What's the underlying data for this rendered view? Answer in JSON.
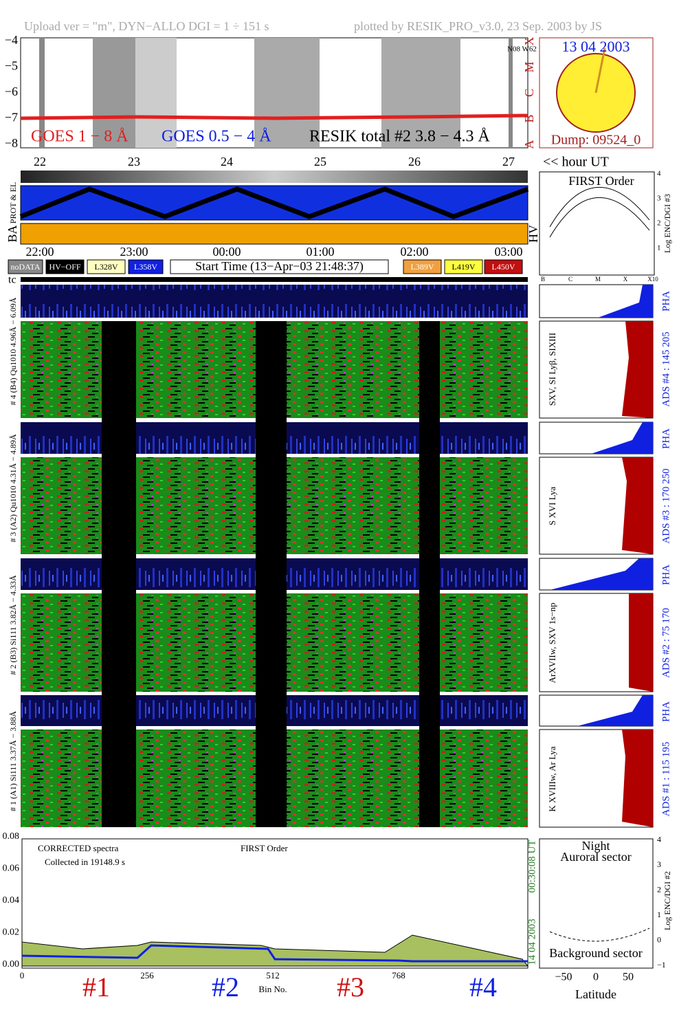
{
  "header": {
    "left": "Upload ver = \"m\", DYN−ALLO DGI =   1 ÷ 151 s",
    "right": "plotted by RESIK_PRO_v3.0, 23 Sep. 2003 by JS"
  },
  "goes": {
    "yticks": [
      "−4",
      "−5",
      "−6",
      "−7",
      "−8"
    ],
    "classes": [
      "A",
      "B",
      "C",
      "M",
      "X"
    ],
    "legend": [
      "GOES 1 − 8 Å",
      "GOES 0.5 − 4 Å",
      "RESIK total #2  3.8 − 4.3 Å"
    ],
    "position": "N08 W62"
  },
  "sun": {
    "date": "13 04 2003",
    "dump": "Dump: 09524_0"
  },
  "days": [
    "22",
    "23",
    "24",
    "25",
    "26",
    "27"
  ],
  "hour_label": "<< hour UT",
  "side_labels": {
    "prot": "PROT & EL",
    "ba": "BA",
    "hv": "HV",
    "tc": "tc"
  },
  "times": [
    "22:00",
    "23:00",
    "00:00",
    "01:00",
    "02:00",
    "03:00"
  ],
  "legend": {
    "nodata": "noDATA",
    "hvoff": "HV−OFF",
    "l328": "L328V",
    "l358": "L358V",
    "start": "Start Time (13−Apr−03 21:48:37)",
    "l389": "L389V",
    "l419": "L419V",
    "l450": "L450V"
  },
  "first_order": {
    "title": "FIRST Order",
    "yticks": [
      "1",
      "2",
      "3",
      "4"
    ],
    "ylabel": "Log ENC/DGI #3",
    "xticks": [
      "B",
      "C",
      "M",
      "X",
      "X10"
    ]
  },
  "channels": [
    {
      "left": "# 4 (B4) Qu1010 4.96Å − 6.09Å",
      "lines": "SXV, SI Lyβ, SIXIII",
      "ads": "ADS #4 :  145 205",
      "pha": "PHA"
    },
    {
      "left": "# 3 (A2) Qu1010 4.31Å − 4.89Å",
      "lines": "S XVI Lya",
      "ads": "ADS #3 :  170 250",
      "pha": "PHA"
    },
    {
      "left": "# 2 (B3) Si111 3.82Å − 4.33Å",
      "lines": "ArXVIIw, SXV 1s−np",
      "ads": "ADS #2 :  75 170",
      "pha": "PHA"
    },
    {
      "left": "# 1 (A1) Si111 3.37Å − 3.88Å",
      "lines": "K XVIIIw, Ar Lya",
      "ads": "ADS #1 :  115 195",
      "pha": "PHA"
    }
  ],
  "spectrum": {
    "note1": "CORRECTED spectra",
    "note2": "Collected in 19148.9 s",
    "note3": "FIRST Order",
    "yticks": [
      "0.00",
      "0.02",
      "0.04",
      "0.06",
      "0.08"
    ],
    "xticks": [
      "0",
      "256",
      "512",
      "768"
    ],
    "xlabel": "Bin No.",
    "time": "00:30:08 UT",
    "date": "14 04 2003",
    "ranges": [
      "#1",
      "#2",
      "#3",
      "#4"
    ]
  },
  "orbit": {
    "title1": "Night",
    "title2": "Auroral sector",
    "title3": "Background sector",
    "yticks": [
      "−1",
      "0",
      "1",
      "2",
      "3",
      "4"
    ],
    "ylabel": "Log ENC/DGI #2",
    "xticks": [
      "−50",
      "0",
      "50"
    ],
    "xlabel": "Latitude"
  }
}
